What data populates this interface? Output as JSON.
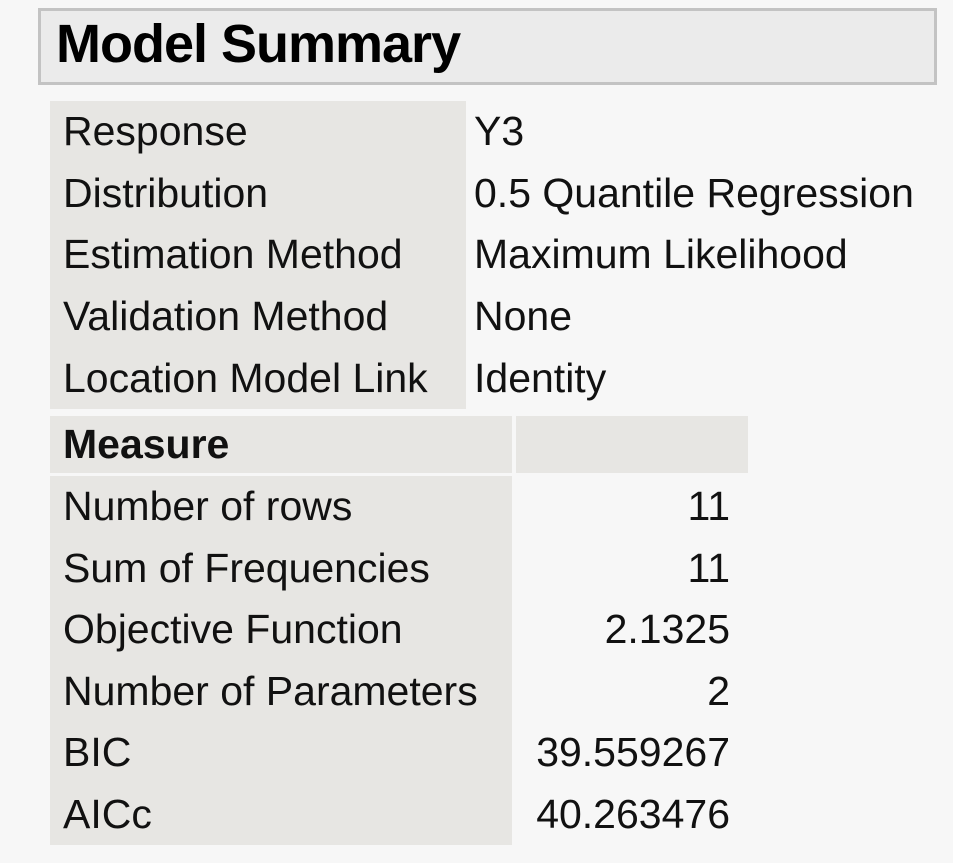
{
  "panel": {
    "title": "Model Summary"
  },
  "summary_table": {
    "rows": [
      {
        "label": "Response",
        "value": "Y3"
      },
      {
        "label": "Distribution",
        "value": "0.5 Quantile Regression"
      },
      {
        "label": "Estimation Method",
        "value": "Maximum Likelihood"
      },
      {
        "label": "Validation Method",
        "value": "None"
      },
      {
        "label": "Location Model Link",
        "value": "Identity"
      }
    ]
  },
  "measure_table": {
    "header": {
      "measure_label": "Measure",
      "value_label": ""
    },
    "rows": [
      {
        "label": "Number of rows",
        "value": "11"
      },
      {
        "label": "Sum of Frequencies",
        "value": "11"
      },
      {
        "label": "Objective Function",
        "value": "2.1325"
      },
      {
        "label": "Number of Parameters",
        "value": "2"
      },
      {
        "label": "BIC",
        "value": "39.559267"
      },
      {
        "label": "AICc",
        "value": "40.263476"
      }
    ]
  },
  "colors": {
    "page_background": "#f7f7f7",
    "cell_background": "#e7e6e3",
    "title_background": "#ebebeb",
    "title_border": "#c3c3c3",
    "text": "#111111"
  }
}
